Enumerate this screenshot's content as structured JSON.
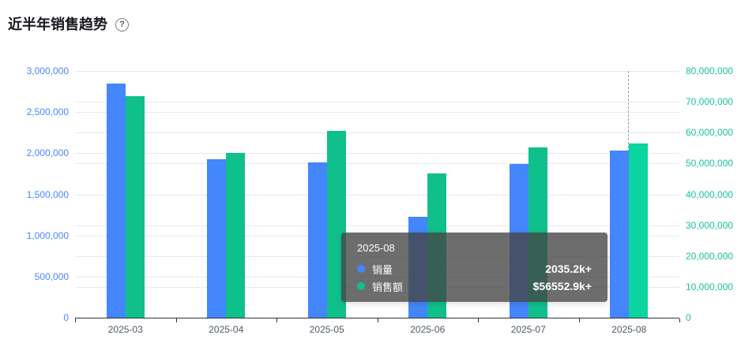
{
  "header": {
    "title": "近半年销售趋势",
    "help_icon": "?"
  },
  "colors": {
    "volume_bar": "#4486fb",
    "amount_bar": "#10c08c",
    "amount_bar_highlight": "#0cd49e",
    "left_axis_label": "#4886fa",
    "right_axis_label": "#16c49a",
    "x_axis_label": "#4e5969",
    "gridline": "#e4e9f3",
    "axis_line": "#2e3238",
    "pointer_line": "#9aa0a6",
    "tooltip_bg": "rgba(68,68,68,0.78)"
  },
  "chart_data": {
    "type": "bar",
    "title": "近半年销售趋势",
    "categories": [
      "2025-03",
      "2025-04",
      "2025-05",
      "2025-06",
      "2025-07",
      "2025-08"
    ],
    "series": [
      {
        "name": "销量",
        "axis": "left",
        "color": "#4486fb",
        "values": [
          2842000,
          1929000,
          1890000,
          1225000,
          1871000,
          2035200
        ]
      },
      {
        "name": "销售额",
        "axis": "right",
        "color": "#10c08c",
        "values": [
          71700000,
          53400000,
          60500000,
          46700000,
          55200000,
          56552900
        ]
      }
    ],
    "left_axis": {
      "min": 0,
      "max": 3000000,
      "step": 500000,
      "tick_labels": [
        "0",
        "500,000",
        "1,000,000",
        "1,500,000",
        "2,000,000",
        "2,500,000",
        "3,000,000"
      ]
    },
    "right_axis": {
      "min": 0,
      "max": 80000000,
      "step": 10000000,
      "tick_labels": [
        "0",
        "10,000,000",
        "20,000,000",
        "30,000,000",
        "40,000,000",
        "50,000,000",
        "60,000,000",
        "70,000,000",
        "80,000,000"
      ]
    },
    "legend_position": "none",
    "grid": true,
    "highlight_category": "2025-08"
  },
  "tooltip": {
    "title": "2025-08",
    "rows": [
      {
        "label": "销量",
        "value": "2035.2k+",
        "color": "#4486fb"
      },
      {
        "label": "销售额",
        "value": "$56552.9k+",
        "color": "#10c08c"
      }
    ]
  }
}
